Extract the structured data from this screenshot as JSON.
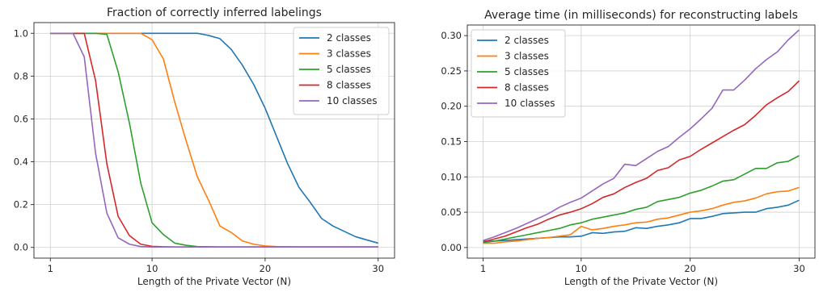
{
  "chart_data": [
    {
      "type": "line",
      "title": "Fraction of correctly inferred labelings",
      "xlabel": "Length of the Private Vector (N)",
      "ylabel": "",
      "xlim": [
        1,
        30
      ],
      "ylim": [
        0,
        1
      ],
      "xticks": [
        1,
        10,
        20,
        30
      ],
      "yticks": [
        0.0,
        0.2,
        0.4,
        0.6,
        0.8,
        1.0
      ],
      "grid": true,
      "legend_position": "top-right",
      "x": [
        1,
        2,
        3,
        4,
        5,
        6,
        7,
        8,
        9,
        10,
        11,
        12,
        13,
        14,
        15,
        16,
        17,
        18,
        19,
        20,
        21,
        22,
        23,
        24,
        25,
        26,
        27,
        28,
        29,
        30
      ],
      "series": [
        {
          "name": "2 classes",
          "color": "#1f77b4",
          "values": [
            1,
            1,
            1,
            1,
            1,
            1,
            1,
            1,
            1,
            1,
            1,
            1,
            1,
            1,
            0.99,
            0.975,
            0.925,
            0.85,
            0.76,
            0.65,
            0.52,
            0.39,
            0.28,
            0.21,
            0.135,
            0.1,
            0.075,
            0.05,
            0.035,
            0.02
          ]
        },
        {
          "name": "3 classes",
          "color": "#ff7f0e",
          "values": [
            1,
            1,
            1,
            1,
            1,
            1,
            1,
            1,
            1,
            0.97,
            0.88,
            0.68,
            0.5,
            0.33,
            0.22,
            0.1,
            0.07,
            0.03,
            0.015,
            0.007,
            0.004,
            0.003,
            0.002,
            0.002,
            0.002,
            0.002,
            0.002,
            0.002,
            0.002,
            0.002
          ]
        },
        {
          "name": "5 classes",
          "color": "#2ca02c",
          "values": [
            1,
            1,
            1,
            1,
            1,
            0.995,
            0.82,
            0.58,
            0.3,
            0.115,
            0.06,
            0.02,
            0.01,
            0.004,
            0.003,
            0.002,
            0.002,
            0.002,
            0.002,
            0.002,
            0.002,
            0.002,
            0.002,
            0.002,
            0.002,
            0.002,
            0.002,
            0.002,
            0.002,
            0.002
          ]
        },
        {
          "name": "8 classes",
          "color": "#d62728",
          "values": [
            1,
            1,
            1,
            1,
            0.78,
            0.39,
            0.145,
            0.055,
            0.015,
            0.005,
            0.003,
            0.002,
            0.002,
            0.002,
            0.002,
            0.002,
            0.002,
            0.002,
            0.002,
            0.002,
            0.002,
            0.002,
            0.002,
            0.002,
            0.002,
            0.002,
            0.002,
            0.002,
            0.002,
            0.002
          ]
        },
        {
          "name": "10 classes",
          "color": "#9467bd",
          "values": [
            1,
            1,
            1,
            0.89,
            0.44,
            0.16,
            0.045,
            0.015,
            0.004,
            0.002,
            0.002,
            0.002,
            0.002,
            0.002,
            0.002,
            0.002,
            0.002,
            0.002,
            0.002,
            0.002,
            0.002,
            0.002,
            0.002,
            0.002,
            0.002,
            0.002,
            0.002,
            0.002,
            0.002,
            0.002
          ]
        }
      ]
    },
    {
      "type": "line",
      "title": "Average time (in milliseconds) for reconstructing labels",
      "xlabel": "Length of the Private Vector (N)",
      "ylabel": "",
      "xlim": [
        1,
        30
      ],
      "ylim": [
        0,
        0.3
      ],
      "xticks": [
        1,
        10,
        20,
        30
      ],
      "yticks": [
        0.0,
        0.05,
        0.1,
        0.15,
        0.2,
        0.25,
        0.3
      ],
      "grid": true,
      "legend_position": "top-left",
      "x": [
        1,
        2,
        3,
        4,
        5,
        6,
        7,
        8,
        9,
        10,
        11,
        12,
        13,
        14,
        15,
        16,
        17,
        18,
        19,
        20,
        21,
        22,
        23,
        24,
        25,
        26,
        27,
        28,
        29,
        30
      ],
      "series": [
        {
          "name": "2 classes",
          "color": "#1f77b4",
          "values": [
            0.009,
            0.009,
            0.01,
            0.011,
            0.012,
            0.013,
            0.014,
            0.015,
            0.015,
            0.016,
            0.021,
            0.02,
            0.022,
            0.023,
            0.028,
            0.027,
            0.03,
            0.032,
            0.035,
            0.041,
            0.041,
            0.044,
            0.048,
            0.049,
            0.05,
            0.05,
            0.055,
            0.057,
            0.06,
            0.067
          ]
        },
        {
          "name": "3 classes",
          "color": "#ff7f0e",
          "values": [
            0.006,
            0.006,
            0.008,
            0.009,
            0.011,
            0.013,
            0.014,
            0.016,
            0.018,
            0.03,
            0.025,
            0.027,
            0.03,
            0.032,
            0.035,
            0.036,
            0.04,
            0.042,
            0.046,
            0.05,
            0.052,
            0.055,
            0.06,
            0.064,
            0.066,
            0.07,
            0.076,
            0.079,
            0.08,
            0.085
          ]
        },
        {
          "name": "5 classes",
          "color": "#2ca02c",
          "values": [
            0.007,
            0.009,
            0.012,
            0.015,
            0.018,
            0.021,
            0.024,
            0.027,
            0.032,
            0.035,
            0.04,
            0.043,
            0.046,
            0.049,
            0.054,
            0.057,
            0.065,
            0.068,
            0.071,
            0.077,
            0.081,
            0.087,
            0.094,
            0.096,
            0.104,
            0.112,
            0.112,
            0.12,
            0.122,
            0.13
          ]
        },
        {
          "name": "8 classes",
          "color": "#d62728",
          "values": [
            0.008,
            0.012,
            0.016,
            0.022,
            0.028,
            0.033,
            0.04,
            0.046,
            0.05,
            0.055,
            0.062,
            0.071,
            0.076,
            0.085,
            0.092,
            0.098,
            0.109,
            0.113,
            0.124,
            0.129,
            0.139,
            0.148,
            0.157,
            0.166,
            0.174,
            0.187,
            0.202,
            0.212,
            0.221,
            0.236
          ]
        },
        {
          "name": "10 classes",
          "color": "#9467bd",
          "values": [
            0.01,
            0.015,
            0.021,
            0.027,
            0.034,
            0.041,
            0.048,
            0.057,
            0.064,
            0.07,
            0.08,
            0.09,
            0.098,
            0.118,
            0.116,
            0.126,
            0.136,
            0.143,
            0.156,
            0.168,
            0.182,
            0.197,
            0.223,
            0.223,
            0.237,
            0.253,
            0.266,
            0.277,
            0.294,
            0.308
          ]
        }
      ]
    }
  ]
}
